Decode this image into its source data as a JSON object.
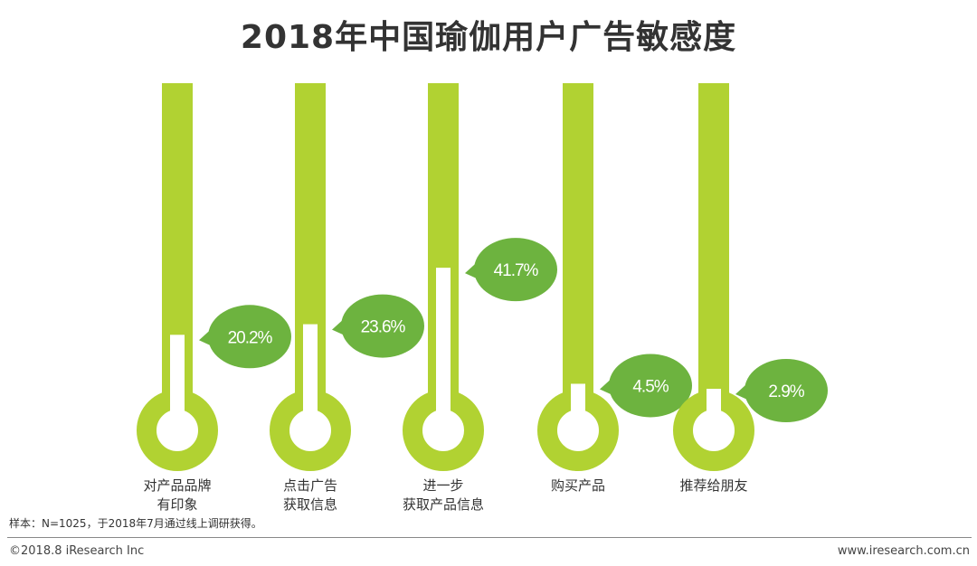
{
  "title": "2018年中国瑜伽用户广告敏感度",
  "note": "样本：N=1025，于2018年7月通过线上调研获得。",
  "footer": {
    "copyright": "©2018.8 iResearch Inc",
    "website": "www.iresearch.com.cn"
  },
  "colors": {
    "bar": "#b1d232",
    "bubble": "#6db33f",
    "bubble_text": "#ffffff",
    "label_text": "#333333"
  },
  "chart_data": {
    "type": "bar",
    "title": "2018年中国瑜伽用户广告敏感度",
    "unit": "%",
    "ylim": [
      0,
      100
    ],
    "categories": [
      [
        "对产品品牌",
        "有印象"
      ],
      [
        "点击广告",
        "获取信息"
      ],
      [
        "进一步",
        "获取产品信息"
      ],
      [
        "购买产品"
      ],
      [
        "推荐给朋友"
      ]
    ],
    "values": [
      20.2,
      23.6,
      41.7,
      4.5,
      2.9
    ],
    "value_labels": [
      "20.2%",
      "23.6%",
      "41.7%",
      "4.5%",
      "2.9%"
    ]
  }
}
